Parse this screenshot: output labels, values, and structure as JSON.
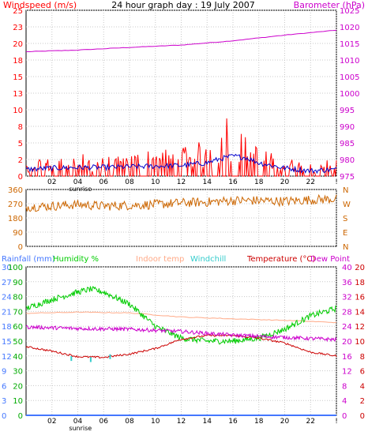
{
  "header": {
    "left_label": "Windspeed (m/s)",
    "title": "24 hour graph day : 19 July 2007",
    "right_label": "Barometer (hPa)"
  },
  "legend": {
    "rainfall": "Rainfall (mm)",
    "humidity": "Humidity %",
    "indoor": "Indoor temp",
    "windchill": "Windchill",
    "temperature": "Temperature (°C)",
    "dewpoint": "Dew Point"
  },
  "colors": {
    "wind_gust": "#ff0000",
    "wind_avg": "#0000cc",
    "barometer": "#cc00cc",
    "direction": "#cc6600",
    "humidity": "#00cc00",
    "indoor": "#ffaa88",
    "windchill": "#33cccc",
    "temperature": "#cc0000",
    "dewpoint": "#cc00cc",
    "rainfall": "#4477ff",
    "tick_left": "#ff0000",
    "tick_right": "#cc00cc",
    "tick_dir": "#cc6600",
    "tick_rain": "#4477ff",
    "tick_hum": "#00aa00",
    "tick_temp": "#cc0000",
    "tick_dew": "#cc00cc",
    "grid": "#c8c8c8"
  },
  "chart_data": [
    {
      "type": "line",
      "title": "24 hour graph day : 19 July 2007",
      "x_ticks": [
        "02",
        "04",
        "06",
        "08",
        "10",
        "12",
        "14",
        "16",
        "18",
        "20",
        "22",
        "!"
      ],
      "x_sublabel": "sunrise",
      "y_left_ticks": [
        "0",
        "2",
        "5",
        "8",
        "10",
        "13",
        "15",
        "18",
        "20",
        "23",
        "25"
      ],
      "y_right_ticks": [
        "975",
        "980",
        "985",
        "990",
        "995",
        "1000",
        "1005",
        "1010",
        "1015",
        "1020",
        "1025"
      ],
      "ylim_left": [
        0,
        25
      ],
      "ylim_right": [
        975,
        1025
      ],
      "series": [
        {
          "name": "Windspeed (m/s)",
          "axis": "left",
          "hours": [
            0,
            2,
            4,
            6,
            8,
            10,
            12,
            14,
            15,
            15.7,
            16,
            17,
            18,
            20,
            22,
            24
          ],
          "values": [
            1.5,
            2,
            2.5,
            2,
            2.5,
            3,
            3,
            4,
            5,
            8,
            6,
            5,
            3,
            2,
            1.5,
            2
          ]
        },
        {
          "axis": "left",
          "hours": [
            0,
            2,
            4,
            6,
            8,
            10,
            12,
            14,
            15,
            16,
            17,
            18,
            20,
            22,
            24
          ],
          "values": [
            1,
            1.2,
            1.3,
            1.3,
            1.4,
            1.5,
            1.6,
            2,
            2.6,
            3,
            2.8,
            2,
            1.2,
            0.8,
            1
          ]
        },
        {
          "name": "Barometer (hPa)",
          "axis": "right",
          "hours": [
            0,
            4,
            8,
            12,
            16,
            20,
            24
          ],
          "values": [
            1012.5,
            1013,
            1013.8,
            1014.5,
            1015.8,
            1017.5,
            1019
          ]
        }
      ]
    },
    {
      "type": "line",
      "x_ticks": [
        "02",
        "04",
        "06",
        "08",
        "10",
        "12",
        "14",
        "16",
        "18",
        "20",
        "22",
        "!"
      ],
      "y_left_ticks": [
        "0",
        "90",
        "180",
        "270",
        "360"
      ],
      "y_right_ticks": [
        "N",
        "E",
        "S",
        "W",
        "N"
      ],
      "ylim": [
        0,
        360
      ],
      "series": [
        {
          "axis": "left",
          "hours": [
            0,
            2,
            4,
            6,
            8,
            10,
            12,
            14,
            16,
            18,
            20,
            22,
            24
          ],
          "values": [
            250,
            255,
            265,
            255,
            260,
            265,
            275,
            280,
            290,
            290,
            285,
            295,
            300
          ]
        }
      ]
    },
    {
      "type": "line",
      "x_ticks": [
        "02",
        "04",
        "06",
        "08",
        "10",
        "12",
        "14",
        "16",
        "18",
        "20",
        "22",
        "!"
      ],
      "x_sublabel": "sunrise",
      "y_rain_ticks": [
        "0",
        "3",
        "6",
        "9",
        "12",
        "15",
        "18",
        "21",
        "24",
        "27",
        "30"
      ],
      "y_hum_ticks": [
        "0",
        "10",
        "20",
        "30",
        "40",
        "50",
        "60",
        "70",
        "80",
        "90",
        "100"
      ],
      "y_temp_ticks": [
        "0",
        "4",
        "8",
        "12",
        "16",
        "20",
        "24",
        "28",
        "32",
        "36",
        "40"
      ],
      "y_dew_ticks": [
        "0",
        "2",
        "4",
        "6",
        "8",
        "10",
        "12",
        "14",
        "16",
        "18",
        "20"
      ],
      "ylim_hum": [
        0,
        100
      ],
      "ylim_temp": [
        0,
        40
      ],
      "series": [
        {
          "name": "Humidity %",
          "axis": "hum",
          "hours": [
            0,
            2,
            4,
            5,
            6,
            8,
            10,
            12,
            14,
            16,
            18,
            19,
            20,
            22,
            24
          ],
          "values": [
            72,
            78,
            83,
            85,
            83,
            75,
            60,
            52,
            50,
            50,
            52,
            55,
            58,
            67,
            72
          ]
        },
        {
          "name": "Indoor temp",
          "axis": "temp",
          "hours": [
            0,
            4,
            8,
            12,
            16,
            20,
            24
          ],
          "values": [
            27.5,
            27.8,
            27.6,
            26.5,
            26,
            25.6,
            25
          ]
        },
        {
          "name": "Temperature (°C)",
          "axis": "temp",
          "hours": [
            0,
            2,
            4,
            6,
            8,
            10,
            12,
            14,
            16,
            18,
            20,
            22,
            24
          ],
          "values": [
            18.5,
            17.3,
            15.8,
            15.6,
            16.5,
            18,
            20.5,
            21.5,
            21.5,
            20.8,
            19.5,
            17,
            16
          ]
        },
        {
          "name": "Dew Point",
          "axis": "dew",
          "hours": [
            0,
            4,
            8,
            12,
            16,
            20,
            24
          ],
          "values": [
            11.9,
            11.7,
            11.6,
            11.3,
            10.8,
            10.5,
            10.2
          ]
        },
        {
          "name": "Windchill",
          "axis": "temp",
          "hours": [
            3.5,
            5,
            6.5
          ],
          "values": [
            15.3,
            15,
            15.8
          ]
        },
        {
          "name": "Rainfall (mm)",
          "axis": "rain",
          "hours": [
            0,
            24
          ],
          "values": [
            0,
            0
          ]
        }
      ]
    }
  ]
}
